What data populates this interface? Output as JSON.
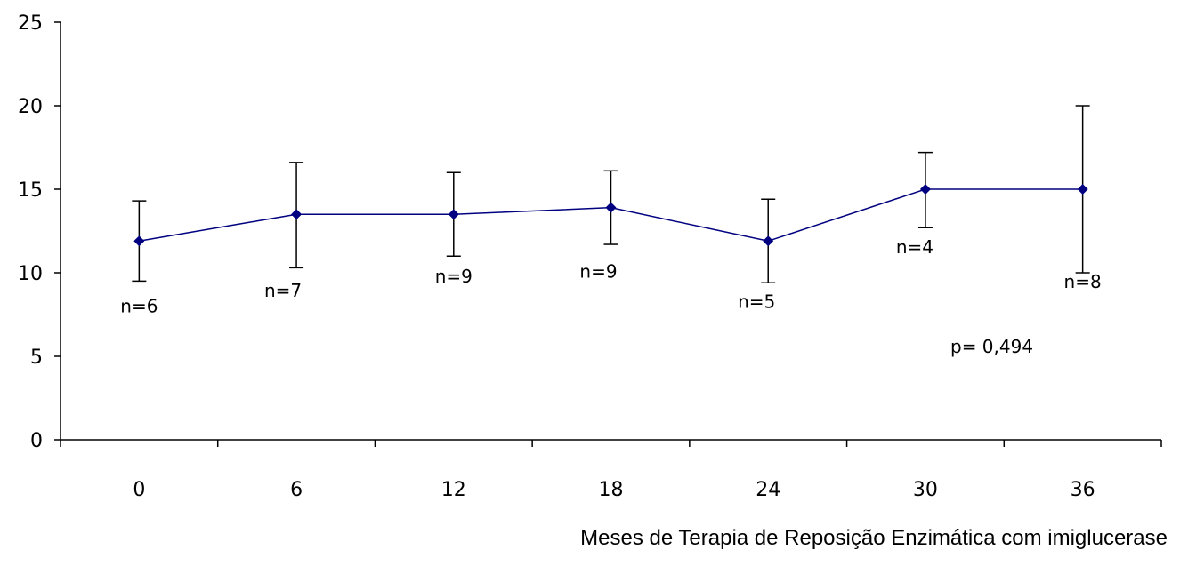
{
  "chart_data": {
    "type": "line",
    "title": "",
    "xlabel": "Meses de Terapia de Reposição Enzimática com imiglucerase",
    "ylabel": "",
    "x": [
      0,
      6,
      12,
      18,
      24,
      30,
      36
    ],
    "x_tick_labels": [
      "0",
      "6",
      "12",
      "18",
      "24",
      "30",
      "36"
    ],
    "y_tick_labels": [
      "0",
      "5",
      "10",
      "15",
      "20",
      "25"
    ],
    "ylim": [
      0,
      25
    ],
    "grid": false,
    "legend": "none",
    "series": [
      {
        "values": [
          11.9,
          13.5,
          13.5,
          13.9,
          11.9,
          15.0,
          15.0
        ],
        "error_upper": [
          14.3,
          16.6,
          16.0,
          16.1,
          14.4,
          17.2,
          20.0
        ],
        "error_lower": [
          9.5,
          10.3,
          11.0,
          11.7,
          9.4,
          12.7,
          10.0
        ],
        "n_labels": [
          "n=6",
          "n=7",
          "n=9",
          "n=9",
          "n=5",
          "n=4",
          "n=8"
        ],
        "color": "#000080"
      }
    ],
    "annotations": [
      {
        "text": "p= 0,494"
      }
    ]
  }
}
